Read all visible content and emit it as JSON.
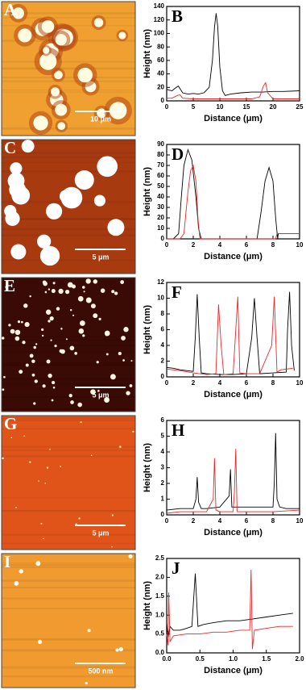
{
  "images": [
    {
      "panel": "A",
      "scale_bar": "10 μm"
    },
    {
      "panel": "C",
      "scale_bar": "5 μm"
    },
    {
      "panel": "E",
      "scale_bar": "5 μm"
    },
    {
      "panel": "G",
      "scale_bar": "5 μm"
    },
    {
      "panel": "I",
      "scale_bar": "500 nm"
    }
  ],
  "chart_data": [
    {
      "type": "line",
      "panel": "B",
      "xlabel": "Distance (μm)",
      "ylabel": "Height (nm)",
      "xlim": [
        0,
        25
      ],
      "ylim": [
        0,
        140
      ],
      "xticks": [
        0,
        5,
        10,
        15,
        20,
        25
      ],
      "yticks": [
        0,
        20,
        40,
        60,
        80,
        100,
        120,
        140
      ],
      "series": [
        {
          "color": "#000000",
          "x": [
            0,
            1,
            1.8,
            2.2,
            3,
            4,
            5,
            6,
            7,
            8,
            8.6,
            9,
            9.3,
            9.6,
            10,
            10.5,
            11,
            12,
            14,
            16,
            18,
            20,
            22,
            25
          ],
          "values": [
            17,
            15,
            20,
            22,
            12,
            10,
            11,
            10,
            12,
            20,
            60,
            110,
            130,
            110,
            50,
            15,
            8,
            10,
            12,
            13,
            13,
            14,
            14,
            15
          ]
        },
        {
          "color": "#e8282a",
          "x": [
            0,
            1,
            2,
            2.5,
            3,
            5,
            8,
            12,
            16,
            17.5,
            18.2,
            18.6,
            19,
            20,
            22,
            25
          ],
          "values": [
            4,
            4,
            8,
            9,
            4,
            3,
            3,
            3,
            3,
            6,
            22,
            27,
            12,
            3,
            3,
            3
          ]
        }
      ]
    },
    {
      "type": "line",
      "panel": "D",
      "xlabel": "Distance (μm)",
      "ylabel": "Height (nm)",
      "xlim": [
        0,
        10
      ],
      "ylim": [
        0,
        90
      ],
      "xticks": [
        0,
        2,
        4,
        6,
        8,
        10
      ],
      "yticks": [
        0,
        10,
        20,
        30,
        40,
        50,
        60,
        70,
        80,
        90
      ],
      "series": [
        {
          "color": "#000000",
          "x": [
            0,
            0.5,
            0.9,
            1.1,
            1.3,
            1.6,
            1.9,
            2.2,
            2.4,
            2.6,
            3,
            5,
            6.8,
            7.1,
            7.4,
            7.7,
            8,
            8.2,
            8.35,
            8.4,
            9,
            10
          ],
          "values": [
            0,
            0,
            5,
            40,
            70,
            85,
            75,
            40,
            10,
            0,
            0,
            0,
            0,
            25,
            55,
            68,
            55,
            20,
            0,
            5,
            5,
            5
          ]
        },
        {
          "color": "#e8282a",
          "x": [
            0,
            1,
            1.3,
            1.6,
            1.8,
            2.0,
            2.2,
            2.35,
            2.5,
            3,
            6,
            8.2,
            8.3,
            9,
            10
          ],
          "values": [
            0,
            0,
            5,
            45,
            65,
            70,
            55,
            20,
            0,
            0,
            0,
            0,
            5,
            5,
            5
          ]
        }
      ]
    },
    {
      "type": "line",
      "panel": "F",
      "xlabel": "Distance (μm)",
      "ylabel": "Height (nm)",
      "xlim": [
        0,
        10
      ],
      "ylim": [
        0,
        12
      ],
      "xticks": [
        0,
        2,
        4,
        6,
        8,
        10
      ],
      "yticks": [
        0,
        2,
        4,
        6,
        8,
        10,
        12
      ],
      "series": [
        {
          "color": "#000000",
          "x": [
            0,
            0.5,
            1,
            1.5,
            2,
            2.15,
            2.3,
            2.45,
            2.6,
            3,
            4,
            5,
            6,
            6.4,
            6.6,
            6.8,
            7,
            8,
            9,
            9.1,
            9.25,
            9.4,
            9.6
          ],
          "values": [
            1.2,
            1.1,
            0.9,
            0.8,
            0.7,
            5,
            10.5,
            5,
            0.5,
            0.4,
            0.3,
            0.3,
            0.4,
            5,
            10,
            5,
            0.4,
            0.5,
            0.6,
            6,
            10.8,
            4,
            0.8
          ]
        },
        {
          "color": "#e8282a",
          "x": [
            0,
            1,
            2,
            3,
            3.7,
            3.9,
            4.1,
            4.3,
            5,
            5.2,
            5.35,
            5.5,
            6,
            7,
            7.9,
            8.1,
            8.3,
            8.6,
            9.5
          ],
          "values": [
            1,
            0.8,
            0.5,
            0.3,
            0.4,
            9.2,
            4,
            0.3,
            0.4,
            6,
            10.2,
            0.5,
            0.4,
            0.4,
            4,
            10.2,
            0.6,
            0.9,
            1.1
          ]
        }
      ]
    },
    {
      "type": "line",
      "panel": "H",
      "xlabel": "Distance (μm)",
      "ylabel": "Height (nm)",
      "xlim": [
        0,
        10
      ],
      "ylim": [
        0,
        6
      ],
      "xticks": [
        0,
        2,
        4,
        6,
        8,
        10
      ],
      "yticks": [
        0,
        1,
        2,
        3,
        4,
        5,
        6
      ],
      "series": [
        {
          "color": "#000000",
          "x": [
            0,
            1,
            2,
            2.2,
            2.3,
            2.4,
            2.6,
            3,
            4,
            4.7,
            4.8,
            4.9,
            5.2,
            6,
            7,
            8,
            8.1,
            8.2,
            8.3,
            8.5,
            9,
            10
          ],
          "values": [
            0.3,
            0.4,
            0.4,
            1,
            2.4,
            0.8,
            0.4,
            0.4,
            0.5,
            1.2,
            2.9,
            0.5,
            0.5,
            0.5,
            0.5,
            0.5,
            2,
            5.2,
            1,
            0.5,
            0.4,
            0.4
          ]
        },
        {
          "color": "#e8282a",
          "x": [
            0,
            1,
            2,
            3,
            3.5,
            3.6,
            3.7,
            4,
            5,
            5.1,
            5.2,
            5.3,
            6,
            8,
            10
          ],
          "values": [
            0.1,
            0.2,
            0.2,
            0.2,
            1,
            3.6,
            0.3,
            0.2,
            0.2,
            1.5,
            4.2,
            0.2,
            0.2,
            0.2,
            0.3
          ]
        }
      ]
    },
    {
      "type": "line",
      "panel": "J",
      "xlabel": "Distance (μm)",
      "ylabel": "Height (nm)",
      "xlim": [
        0,
        2
      ],
      "ylim": [
        0,
        2.5
      ],
      "xticks": [
        {
          "value": 0,
          "label": "0.0"
        },
        {
          "value": 0.5,
          "label": "0.5"
        },
        {
          "value": 1,
          "label": "1.0"
        },
        {
          "value": 1.5,
          "label": "1.5"
        },
        {
          "value": 2,
          "label": "2.0"
        }
      ],
      "yticks": [
        {
          "value": 0,
          "label": "0.0"
        },
        {
          "value": 0.5,
          "label": "0.5"
        },
        {
          "value": 1,
          "label": "1.0"
        },
        {
          "value": 1.5,
          "label": "1.5"
        },
        {
          "value": 2,
          "label": "2.0"
        },
        {
          "value": 2.5,
          "label": "2.5"
        }
      ],
      "series": [
        {
          "color": "#000000",
          "x": [
            0,
            0.02,
            0.05,
            0.1,
            0.2,
            0.3,
            0.38,
            0.43,
            0.47,
            0.55,
            0.7,
            0.9,
            1.1,
            1.3,
            1.5,
            1.7,
            1.9
          ],
          "values": [
            0.8,
            0.4,
            0.7,
            0.6,
            0.6,
            0.65,
            0.7,
            2.1,
            0.7,
            0.75,
            0.8,
            0.85,
            0.85,
            0.9,
            0.95,
            1.0,
            1.05
          ]
        },
        {
          "color": "#e8282a",
          "x": [
            0,
            0.02,
            0.03,
            0.05,
            0.1,
            0.3,
            0.5,
            0.7,
            0.9,
            1.1,
            1.25,
            1.27,
            1.29,
            1.32,
            1.5,
            1.7,
            1.9
          ],
          "values": [
            0.5,
            0.2,
            1.6,
            0.3,
            0.45,
            0.5,
            0.5,
            0.55,
            0.55,
            0.6,
            0.6,
            2.2,
            0.1,
            0.6,
            0.65,
            0.7,
            0.7
          ]
        }
      ]
    }
  ]
}
